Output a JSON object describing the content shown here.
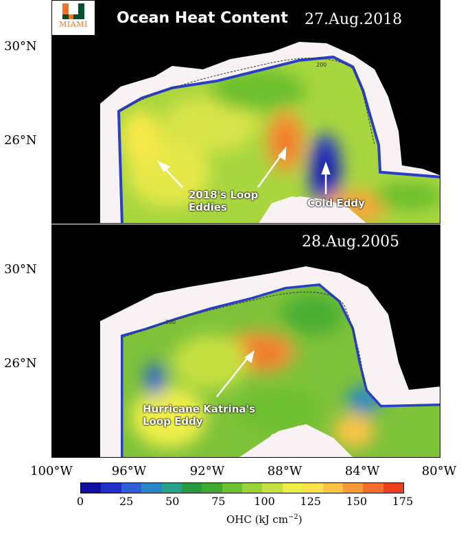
{
  "title": "Ocean Heat Content",
  "logo": {
    "text": "MIAMI"
  },
  "panels": {
    "top": {
      "date": "27.Aug.2018",
      "contour": "200",
      "annotations": {
        "eddies": [
          "2018's Loop",
          "Eddies"
        ],
        "cold": "Cold Eddy"
      }
    },
    "bottom": {
      "date": "28.Aug.2005",
      "contour": "200",
      "annotations": {
        "katrina": [
          "Hurricane Katrina's",
          "Loop Eddy"
        ]
      }
    }
  },
  "lat_labels": {
    "top": [
      "30°N",
      "26°N"
    ],
    "bottom": [
      "30°N",
      "26°N"
    ]
  },
  "lon_labels": [
    "100°W",
    "96°W",
    "92°W",
    "88°W",
    "84°W",
    "80°W"
  ],
  "colorbar": {
    "ticks": [
      "0",
      "25",
      "50",
      "75",
      "100",
      "125",
      "150",
      "175"
    ],
    "title": "OHC (kJ cm",
    "title_exp": "−2",
    "title_close": ")",
    "colors": [
      "#1010a0",
      "#2030c8",
      "#2c5fd8",
      "#2a86c8",
      "#2aa08a",
      "#2a9a40",
      "#3faa30",
      "#6cbf2e",
      "#9ad23a",
      "#c6e040",
      "#eeee48",
      "#fae24a",
      "#fbc446",
      "#f99a3a",
      "#f46e2e",
      "#ea4020"
    ]
  },
  "colors": {
    "land": "#000000",
    "shelf": "#f8f2f4",
    "deep": "#7ec23a"
  }
}
